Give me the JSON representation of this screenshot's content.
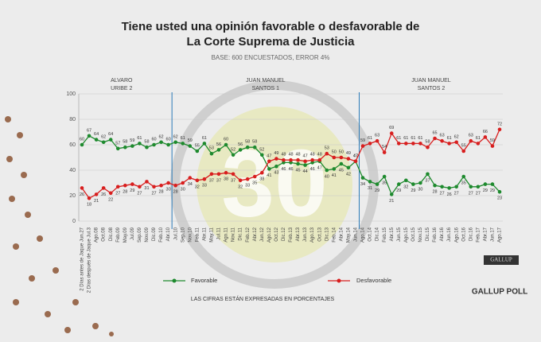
{
  "chart_data": {
    "type": "line",
    "title": [
      "Tiene usted una opinión favorable o desfavorable de",
      "La Corte Suprema de Justicia"
    ],
    "subtitle": "BASE: 600 ENCUESTADOS, ERROR 4%",
    "periods": [
      [
        "ALVARO",
        "URIBE 2"
      ],
      [
        "JUAN MANUEL",
        "SANTOS 1"
      ],
      [
        "JUAN MANUEL",
        "SANTOS 2"
      ]
    ],
    "watermark": "30",
    "note": "LAS CIFRAS ESTÁN EXPRESADAS EN PORCENTAJES",
    "brand": [
      "GALLUP",
      "GALLUP POLL"
    ],
    "categories": [
      "2 Días antes de Jaque Jun.27",
      "2 Días después de Jaque Jul.3",
      "Ago.08",
      "Oct.08",
      "Dic.08",
      "Feb.09",
      "May.09",
      "Jul.09",
      "Sep.09",
      "Nov.09",
      "Dic.09",
      "Feb.10",
      "Abr.10",
      "Jul.10",
      "Sep.10",
      "Nov.10",
      "Feb.11",
      "Abr.11",
      "May.11",
      "Jul.11",
      "Ago.11",
      "Nov.11",
      "Dic.11",
      "Feb.12",
      "Abr.12",
      "Jun.12",
      "Ago.12",
      "Oct.12",
      "Dic.12",
      "Feb.13",
      "Abr.13",
      "Jun.13",
      "Ago.13",
      "Oct.13",
      "Dic.13",
      "Feb.14",
      "Abr.14",
      "May.14",
      "Jun.14",
      "Ago.14",
      "Oct.14",
      "Dic.14",
      "Feb.15",
      "Abr.15",
      "Jun.15",
      "Ago.15",
      "Oct.15",
      "Nov.15",
      "Dic.15",
      "Feb.16",
      "Abr.16",
      "Jun.16",
      "Ago.16",
      "Oct.16",
      "Dic.16",
      "Feb.17",
      "Abr.17",
      "Jun.17",
      "Ago.17"
    ],
    "series": [
      {
        "name": "Favorable",
        "color": "#1e8a2e",
        "values": [
          60,
          67,
          64,
          62,
          64,
          57,
          58,
          59,
          61,
          58,
          60,
          62,
          60,
          62,
          61,
          59,
          55,
          61,
          53,
          56,
          60,
          52,
          56,
          58,
          58,
          52,
          41,
          43,
          46,
          46,
          45,
          44,
          46,
          47,
          40,
          41,
          45,
          42,
          47,
          34,
          31,
          29,
          35,
          21,
          29,
          32,
          29,
          30,
          37,
          28,
          27,
          26,
          27,
          35,
          27,
          27,
          29,
          29,
          23
        ]
      },
      {
        "name": "Desfavorable",
        "color": "#d81e1e",
        "values": [
          26,
          18,
          21,
          26,
          22,
          27,
          28,
          29,
          27,
          31,
          27,
          28,
          30,
          28,
          30,
          34,
          32,
          33,
          37,
          37,
          38,
          37,
          32,
          33,
          35,
          38,
          47,
          49,
          48,
          48,
          48,
          47,
          48,
          48,
          53,
          50,
          50,
          49,
          47,
          59,
          61,
          63,
          54,
          69,
          61,
          61,
          61,
          61,
          58,
          65,
          63,
          61,
          62,
          55,
          63,
          61,
          66,
          59,
          72
        ]
      }
    ],
    "ylim": [
      0,
      100
    ],
    "yticks": [
      0,
      20,
      40,
      60,
      80,
      100
    ],
    "grid": true
  }
}
